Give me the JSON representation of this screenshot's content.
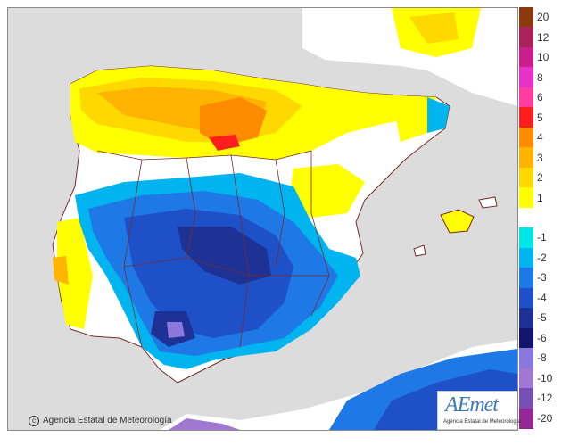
{
  "map": {
    "copyright": "Agencia Estatal de Meteorología",
    "logo_text": "AEmet",
    "logo_subtitle": "Agencia Estatal de Meteorología",
    "colors": {
      "sea": "#dcdcdc",
      "land_neutral": "#ffffff",
      "border": "#7a2a2a"
    }
  },
  "legend": [
    {
      "label": "20",
      "color": "#8b3a0e"
    },
    {
      "label": "12",
      "color": "#a8235a"
    },
    {
      "label": "10",
      "color": "#c81e8c"
    },
    {
      "label": "8",
      "color": "#e632c8"
    },
    {
      "label": "6",
      "color": "#ff3ca0"
    },
    {
      "label": "5",
      "color": "#ff1e1e"
    },
    {
      "label": "4",
      "color": "#ff8c00"
    },
    {
      "label": "3",
      "color": "#ffb400"
    },
    {
      "label": "2",
      "color": "#ffd800"
    },
    {
      "label": "1",
      "color": "#ffff00"
    },
    {
      "label": "",
      "color": "#ffffff"
    },
    {
      "label": "-1",
      "color": "#00e6e6"
    },
    {
      "label": "-2",
      "color": "#00b4f0"
    },
    {
      "label": "-3",
      "color": "#1e78e6"
    },
    {
      "label": "-4",
      "color": "#1e50c8"
    },
    {
      "label": "-5",
      "color": "#1e3296"
    },
    {
      "label": "-6",
      "color": "#14146e"
    },
    {
      "label": "-8",
      "color": "#8c78dc"
    },
    {
      "label": "-10",
      "color": "#a078d2"
    },
    {
      "label": "-12",
      "color": "#7850b4"
    },
    {
      "label": "-20",
      "color": "#962896"
    }
  ]
}
